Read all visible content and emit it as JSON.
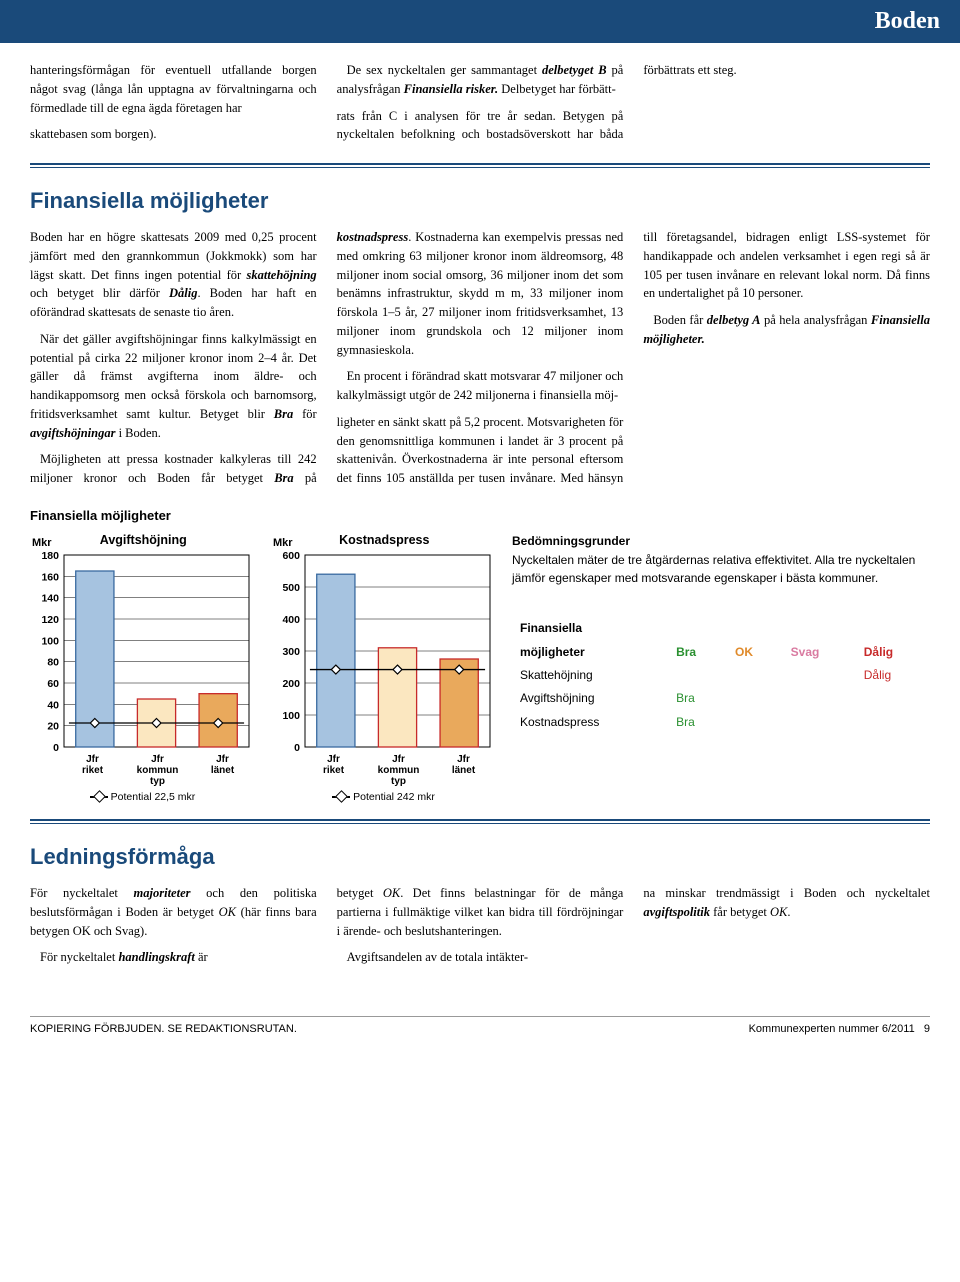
{
  "header": {
    "title": "Boden"
  },
  "intro": {
    "c1": "hanteringsförmågan för eventuell utfallande borgen något svag (långa lån upptagna av förvaltningarna och förmedlade till de egna ägda företagen har",
    "c2a": "skattebasen som borgen).",
    "c2b_pre": "De sex nyckeltalen ger sammantaget ",
    "c2b_bi": "delbetyget B",
    "c2b_mid": " på analysfrågan ",
    "c2b_i": "Finansiella risker.",
    "c2b_post": " Delbetyget har förbätt-",
    "c3": "rats från C i analysen för tre år sedan. Betygen på nyckeltalen befolkning och bostadsöverskott har båda förbättrats ett steg."
  },
  "finmoj": {
    "title": "Finansiella möjligheter",
    "p1a": "Boden har en högre skattesats 2009 med 0,25 procent jämfört med den grannkommun (Jokkmokk) som har lägst skatt. Det finns ingen potential för ",
    "p1a_bi": "skattehöjning",
    "p1a_mid": " och betyget blir därför ",
    "p1a_bi2": "Dålig",
    "p1a_post": ". Boden har haft en oförändrad skattesats de senaste tio åren.",
    "p1b": "När det gäller avgiftshöjningar finns kalkylmässigt en potential på cirka 22 miljoner kronor inom 2–4 år. Det gäller då främst avgifterna inom äldre- och handikappomsorg men också förskola och barnomsorg, fritidsverksamhet samt kultur. Betyget blir ",
    "p1b_bi": "Bra",
    "p1b_mid": " för ",
    "p1b_bi2": "avgiftshöjningar",
    "p1b_post": " i Boden.",
    "p2a": "Möjligheten att pressa kostnader kalkyleras till 242 miljoner kronor och Boden får betyget ",
    "p2a_bi": "Bra",
    "p2a_mid": " på ",
    "p2a_bi2": "kostnadspress",
    "p2a_post": ". Kostnaderna kan exempelvis pressas ned med omkring 63 miljoner kronor inom äldreomsorg, 48 miljoner inom social omsorg, 36 miljoner inom det som benämns infrastruktur, skydd m m, 33 miljoner inom förskola 1–5 år, 27 miljoner inom fritidsverksamhet, 13 miljoner inom grundskola och 12 miljoner inom gymnasieskola.",
    "p2b": "En procent i förändrad skatt motsvarar 47 miljoner och kalkylmässigt utgör de 242 miljonerna i finansiella möj-",
    "p3a": "ligheter en sänkt skatt på 5,2 procent. Motsvarigheten för den genomsnittliga kommunen i landet är 3 procent på skattenivån. Överkostnaderna är inte personal eftersom det finns 105 anställda per tusen invånare. Med hänsyn till företagsandel, bidragen enligt LSS-systemet för handikappade och andelen verksamhet i egen regi så är 105 per tusen invånare en relevant lokal norm. Då finns en undertalighet på 10 personer.",
    "p3b_pre": "Boden får ",
    "p3b_bi": "delbetyg A",
    "p3b_mid": " på hela analysfrågan ",
    "p3b_i": "Finansiella möjligheter."
  },
  "charts": {
    "block_title": "Finansiella möjligheter",
    "chart1": {
      "title": "Avgiftshöjning",
      "ylabel": "Mkr",
      "ymax": 180,
      "ystep": 20,
      "categories": [
        "Jfr riket",
        "Jfr kommun typ",
        "Jfr länet"
      ],
      "values": [
        165,
        45,
        50
      ],
      "colors": [
        "#a6c3e0",
        "#fbe7c0",
        "#e9a95c"
      ],
      "potential": 22.5,
      "legend": "Potential 22,5 mkr"
    },
    "chart2": {
      "title": "Kostnadspress",
      "ylabel": "Mkr",
      "ymax": 600,
      "ystep": 100,
      "categories": [
        "Jfr riket",
        "Jfr kommun typ",
        "Jfr länet"
      ],
      "values": [
        540,
        310,
        275
      ],
      "colors": [
        "#a6c3e0",
        "#fbe7c0",
        "#e9a95c"
      ],
      "potential": 242,
      "legend": "Potential 242 mkr"
    },
    "bedom": {
      "title": "Bedömningsgrunder",
      "body": "Nyckeltalen mäter de tre åtgärdernas relativa effektivitet. Alla tre nyckeltalen jämför egenskaper med motsvarande egenskaper i bästa kommuner."
    },
    "grades": {
      "row0": {
        "a": "Finansiella",
        "b": "",
        "c": "",
        "d": "",
        "e": ""
      },
      "row1": {
        "a": "möjligheter",
        "b": "Bra",
        "c": "OK",
        "d": "Svag",
        "e": "Dålig"
      },
      "r2": {
        "a": "Skattehöjning",
        "e": "Dålig"
      },
      "r3": {
        "a": "Avgiftshöjning",
        "b": "Bra"
      },
      "r4": {
        "a": "Kostnadspress",
        "b": "Bra"
      }
    }
  },
  "ledning": {
    "title": "Ledningsförmåga",
    "p1_pre": "För nyckeltalet ",
    "p1_bi": "majoriteter",
    "p1_mid": " och den politiska beslutsförmågan i Boden är betyget ",
    "p1_i": "OK",
    "p1_post": " (här finns bara betygen OK och Svag).",
    "p1b_pre": "För nyckeltalet ",
    "p1b_bi": "handlingskraft",
    "p1b_post": " är",
    "p2_pre": "betyget ",
    "p2_i": "OK",
    "p2_post": ". Det finns belastningar för de många partierna i fullmäktige vilket kan bidra till fördröjningar i ärende- och beslutshanteringen.",
    "p2b": "Avgiftsandelen av de totala intäkter-",
    "p3_pre": "na minskar trendmässigt i Boden och nyckeltalet ",
    "p3_bi": "avgiftspolitik",
    "p3_mid": " får betyget ",
    "p3_i": "OK",
    "p3_post": "."
  },
  "footer": {
    "left": "KOPIERING FÖRBJUDEN. SE REDAKTIONSRUTAN.",
    "right_a": "Kommunexperten nummer 6/2011",
    "right_b": "9"
  }
}
